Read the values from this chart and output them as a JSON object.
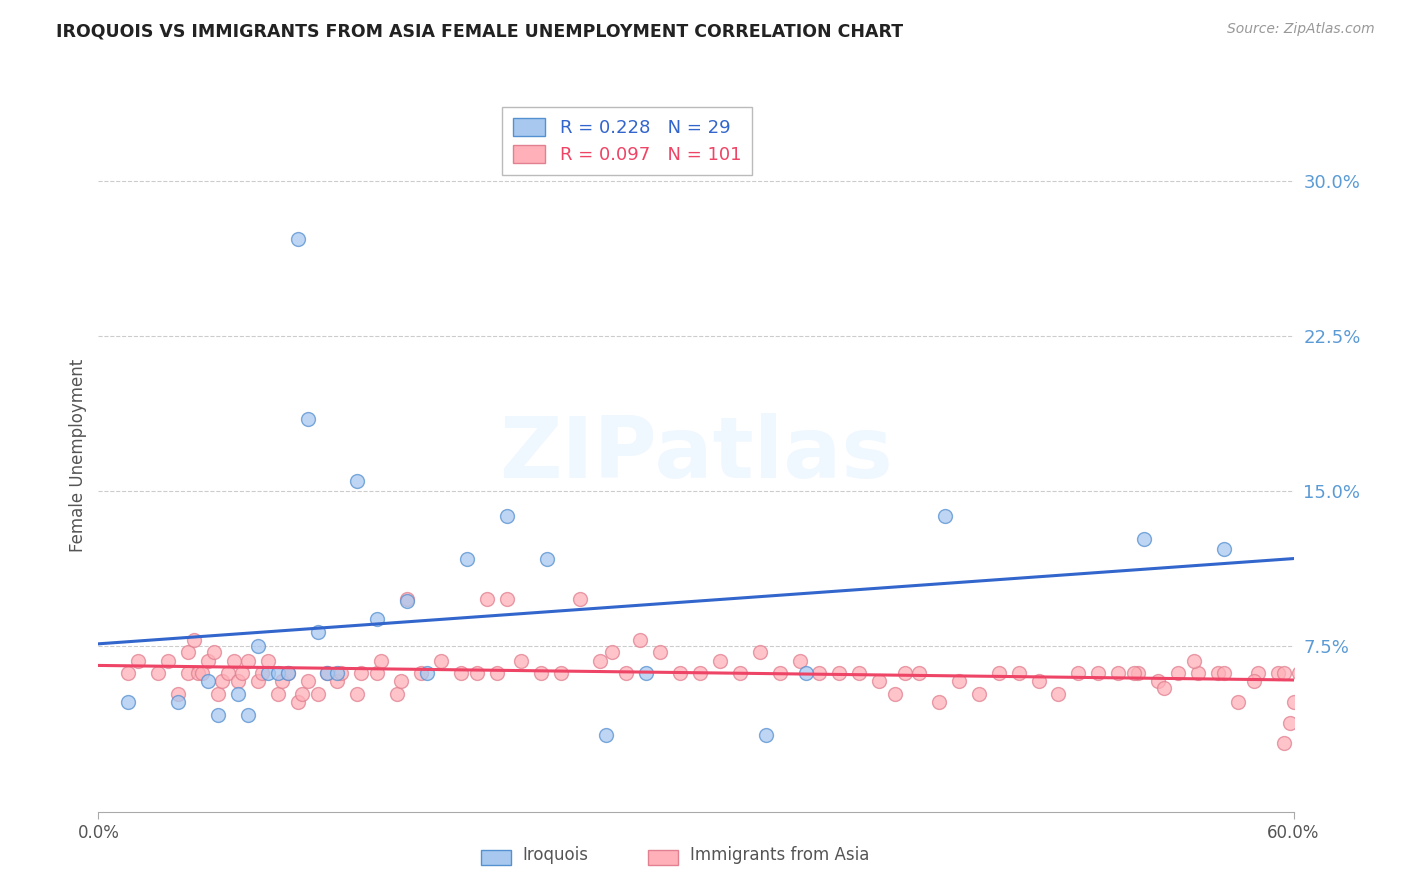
{
  "title": "IROQUOIS VS IMMIGRANTS FROM ASIA FEMALE UNEMPLOYMENT CORRELATION CHART",
  "source": "Source: ZipAtlas.com",
  "ylabel": "Female Unemployment",
  "xlim": [
    0.0,
    0.6
  ],
  "ylim": [
    -0.005,
    0.34
  ],
  "yticks": [
    0.075,
    0.15,
    0.225,
    0.3
  ],
  "ytick_labels": [
    "7.5%",
    "15.0%",
    "22.5%",
    "30.0%"
  ],
  "xtick_positions": [
    0.0,
    0.6
  ],
  "xtick_labels": [
    "0.0%",
    "60.0%"
  ],
  "legend_label1": "Iroquois",
  "legend_label2": "Immigrants from Asia",
  "R1": 0.228,
  "N1": 29,
  "R2": 0.097,
  "N2": 101,
  "color_blue_fill": "#A8C8F0",
  "color_blue_edge": "#5590D0",
  "color_pink_fill": "#FFB0B8",
  "color_pink_edge": "#E08090",
  "color_line_blue": "#3366CC",
  "color_line_pink": "#EE4466",
  "background": "#FFFFFF",
  "iroquois_x": [
    0.015,
    0.04,
    0.055,
    0.06,
    0.07,
    0.075,
    0.08,
    0.085,
    0.09,
    0.095,
    0.1,
    0.105,
    0.11,
    0.115,
    0.12,
    0.13,
    0.14,
    0.155,
    0.165,
    0.185,
    0.205,
    0.225,
    0.255,
    0.275,
    0.335,
    0.355,
    0.425,
    0.525,
    0.565
  ],
  "iroquois_y": [
    0.048,
    0.048,
    0.058,
    0.042,
    0.052,
    0.042,
    0.075,
    0.062,
    0.062,
    0.062,
    0.272,
    0.185,
    0.082,
    0.062,
    0.062,
    0.155,
    0.088,
    0.097,
    0.062,
    0.117,
    0.138,
    0.117,
    0.032,
    0.062,
    0.032,
    0.062,
    0.138,
    0.127,
    0.122
  ],
  "asia_x": [
    0.015,
    0.02,
    0.03,
    0.035,
    0.04,
    0.045,
    0.045,
    0.048,
    0.05,
    0.052,
    0.055,
    0.058,
    0.06,
    0.062,
    0.065,
    0.068,
    0.07,
    0.072,
    0.075,
    0.08,
    0.082,
    0.085,
    0.09,
    0.092,
    0.095,
    0.1,
    0.102,
    0.105,
    0.11,
    0.115,
    0.12,
    0.122,
    0.13,
    0.132,
    0.14,
    0.142,
    0.15,
    0.152,
    0.155,
    0.162,
    0.172,
    0.182,
    0.19,
    0.195,
    0.2,
    0.205,
    0.212,
    0.222,
    0.232,
    0.242,
    0.252,
    0.258,
    0.265,
    0.272,
    0.282,
    0.292,
    0.302,
    0.312,
    0.322,
    0.332,
    0.342,
    0.352,
    0.362,
    0.372,
    0.382,
    0.392,
    0.4,
    0.405,
    0.412,
    0.422,
    0.432,
    0.442,
    0.452,
    0.462,
    0.472,
    0.482,
    0.492,
    0.502,
    0.512,
    0.522,
    0.532,
    0.542,
    0.552,
    0.562,
    0.572,
    0.582,
    0.592,
    0.595,
    0.598,
    0.6,
    0.603,
    0.605,
    0.608,
    0.612,
    0.615,
    0.52,
    0.535,
    0.55,
    0.565,
    0.58,
    0.595
  ],
  "asia_y": [
    0.062,
    0.068,
    0.062,
    0.068,
    0.052,
    0.062,
    0.072,
    0.078,
    0.062,
    0.062,
    0.068,
    0.072,
    0.052,
    0.058,
    0.062,
    0.068,
    0.058,
    0.062,
    0.068,
    0.058,
    0.062,
    0.068,
    0.052,
    0.058,
    0.062,
    0.048,
    0.052,
    0.058,
    0.052,
    0.062,
    0.058,
    0.062,
    0.052,
    0.062,
    0.062,
    0.068,
    0.052,
    0.058,
    0.098,
    0.062,
    0.068,
    0.062,
    0.062,
    0.098,
    0.062,
    0.098,
    0.068,
    0.062,
    0.062,
    0.098,
    0.068,
    0.072,
    0.062,
    0.078,
    0.072,
    0.062,
    0.062,
    0.068,
    0.062,
    0.072,
    0.062,
    0.068,
    0.062,
    0.062,
    0.062,
    0.058,
    0.052,
    0.062,
    0.062,
    0.048,
    0.058,
    0.052,
    0.062,
    0.062,
    0.058,
    0.052,
    0.062,
    0.062,
    0.062,
    0.062,
    0.058,
    0.062,
    0.062,
    0.062,
    0.048,
    0.062,
    0.062,
    0.028,
    0.038,
    0.048,
    0.062,
    0.072,
    0.062,
    0.052,
    0.062,
    0.062,
    0.055,
    0.068,
    0.062,
    0.058,
    0.062
  ]
}
